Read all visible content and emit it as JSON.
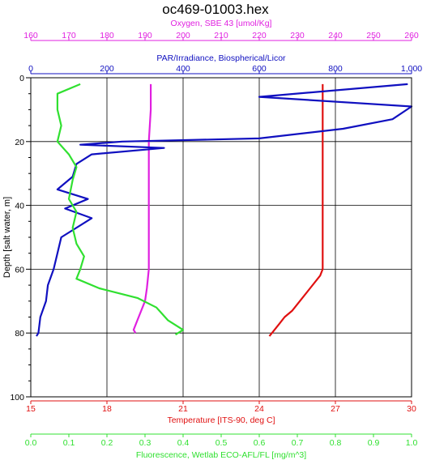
{
  "chart_data": {
    "type": "line",
    "title": "oc469-01003.hex",
    "y_axis": {
      "label": "Depth [salt water, m]",
      "range": [
        0,
        100
      ],
      "inverted": true,
      "ticks": [
        0,
        20,
        40,
        60,
        80,
        100
      ],
      "minor_step": 5,
      "color": "#000000"
    },
    "x_axes": [
      {
        "id": "oxygen",
        "position": "top",
        "label": "Oxygen, SBE 43 [umol/Kg]",
        "range": [
          160,
          260
        ],
        "ticks": [
          160,
          170,
          180,
          190,
          200,
          210,
          220,
          230,
          240,
          250,
          260
        ],
        "tick_labels": [
          "160",
          "170",
          "180",
          "190",
          "200",
          "210",
          "220",
          "230",
          "240",
          "250",
          "260"
        ],
        "color": "#e020e0"
      },
      {
        "id": "par",
        "position": "top",
        "label": "PAR/Irradiance, Biospherical/Licor",
        "range": [
          0,
          1000
        ],
        "ticks": [
          0,
          200,
          400,
          600,
          800,
          1000
        ],
        "tick_labels": [
          "0",
          "200",
          "400",
          "600",
          "800",
          "1,000"
        ],
        "color": "#1010c0"
      },
      {
        "id": "temperature",
        "position": "bottom",
        "label": "Temperature [ITS-90, deg C]",
        "range": [
          15,
          30
        ],
        "ticks": [
          15,
          18,
          21,
          24,
          27,
          30
        ],
        "tick_labels": [
          "15",
          "18",
          "21",
          "24",
          "27",
          "30"
        ],
        "color": "#e01010"
      },
      {
        "id": "fluorescence",
        "position": "bottom",
        "label": "Fluorescence, Wetlab ECO-AFL/FL [mg/m^3]",
        "range": [
          0,
          1
        ],
        "ticks": [
          0,
          0.1,
          0.2,
          0.3,
          0.4,
          0.5,
          0.6,
          0.7,
          0.8,
          0.9,
          1.0
        ],
        "tick_labels": [
          "0.0",
          "0.1",
          "0.2",
          "0.3",
          "0.4",
          "0.5",
          "0.6",
          "0.7",
          "0.8",
          "0.9",
          "1.0"
        ],
        "color": "#30e030"
      }
    ],
    "grid": true,
    "series": [
      {
        "axis": "temperature",
        "color": "#e01010",
        "points": [
          [
            26.5,
            2
          ],
          [
            26.5,
            10
          ],
          [
            26.5,
            20
          ],
          [
            26.5,
            30
          ],
          [
            26.5,
            44
          ],
          [
            26.5,
            50
          ],
          [
            26.5,
            60
          ],
          [
            26.4,
            62
          ],
          [
            26.0,
            66
          ],
          [
            25.6,
            70
          ],
          [
            25.3,
            73
          ],
          [
            25.0,
            75
          ],
          [
            24.8,
            77
          ],
          [
            24.6,
            79
          ],
          [
            24.5,
            80
          ],
          [
            24.4,
            81
          ]
        ]
      },
      {
        "axis": "oxygen",
        "color": "#e020e0",
        "points": [
          [
            191.5,
            2
          ],
          [
            191.5,
            10
          ],
          [
            191,
            20
          ],
          [
            191,
            30
          ],
          [
            191,
            40
          ],
          [
            191,
            50
          ],
          [
            191,
            60
          ],
          [
            190.5,
            66
          ],
          [
            190,
            70
          ],
          [
            189,
            73
          ],
          [
            188,
            76
          ],
          [
            187,
            79
          ],
          [
            187.5,
            80
          ]
        ]
      },
      {
        "axis": "par",
        "color": "#1010c0",
        "points": [
          [
            990,
            2
          ],
          [
            600,
            6
          ],
          [
            1000,
            9
          ],
          [
            950,
            13
          ],
          [
            820,
            16
          ],
          [
            600,
            19
          ],
          [
            240,
            20
          ],
          [
            130,
            21
          ],
          [
            350,
            22
          ],
          [
            160,
            24
          ],
          [
            120,
            27
          ],
          [
            110,
            31
          ],
          [
            70,
            35
          ],
          [
            150,
            38
          ],
          [
            90,
            41
          ],
          [
            160,
            44
          ],
          [
            80,
            50
          ],
          [
            70,
            55
          ],
          [
            60,
            60
          ],
          [
            45,
            65
          ],
          [
            40,
            70
          ],
          [
            25,
            75
          ],
          [
            20,
            80
          ],
          [
            15,
            81
          ]
        ]
      },
      {
        "axis": "fluorescence",
        "color": "#30e030",
        "points": [
          [
            0.13,
            2
          ],
          [
            0.07,
            5
          ],
          [
            0.07,
            10
          ],
          [
            0.08,
            15
          ],
          [
            0.07,
            20
          ],
          [
            0.1,
            24
          ],
          [
            0.12,
            28
          ],
          [
            0.11,
            32
          ],
          [
            0.1,
            38
          ],
          [
            0.12,
            42
          ],
          [
            0.11,
            47
          ],
          [
            0.12,
            52
          ],
          [
            0.14,
            56
          ],
          [
            0.13,
            60
          ],
          [
            0.12,
            63
          ],
          [
            0.18,
            66
          ],
          [
            0.28,
            69
          ],
          [
            0.33,
            72
          ],
          [
            0.36,
            76
          ],
          [
            0.4,
            79
          ],
          [
            0.38,
            80.5
          ]
        ]
      }
    ]
  }
}
